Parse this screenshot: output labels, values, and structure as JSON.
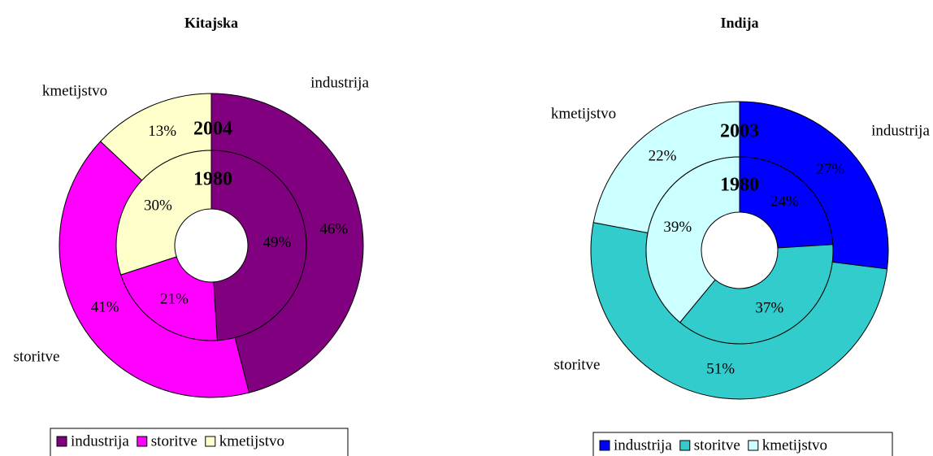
{
  "chart_data": [
    {
      "type": "donut",
      "title": "Kitajska",
      "categories": [
        "industrija",
        "storitve",
        "kmetijstvo"
      ],
      "colors": [
        "#800080",
        "#ff00ff",
        "#ffffcc"
      ],
      "series": [
        {
          "name": "2004",
          "values": [
            46,
            41,
            13
          ],
          "value_labels": [
            "46%",
            "41%",
            "13%"
          ]
        },
        {
          "name": "1980",
          "values": [
            49,
            21,
            30
          ],
          "value_labels": [
            "49%",
            "21%",
            "30%"
          ]
        }
      ],
      "legend": "bottom"
    },
    {
      "type": "donut",
      "title": "Indija",
      "categories": [
        "industrija",
        "storitve",
        "kmetijstvo"
      ],
      "colors": [
        "#0000ff",
        "#33cccc",
        "#ccffff"
      ],
      "series": [
        {
          "name": "2003",
          "values": [
            27,
            51,
            22
          ],
          "value_labels": [
            "27%",
            "51%",
            "22%"
          ]
        },
        {
          "name": "1980",
          "values": [
            24,
            37,
            39
          ],
          "value_labels": [
            "24%",
            "37%",
            "39%"
          ]
        }
      ],
      "legend": "bottom"
    }
  ]
}
